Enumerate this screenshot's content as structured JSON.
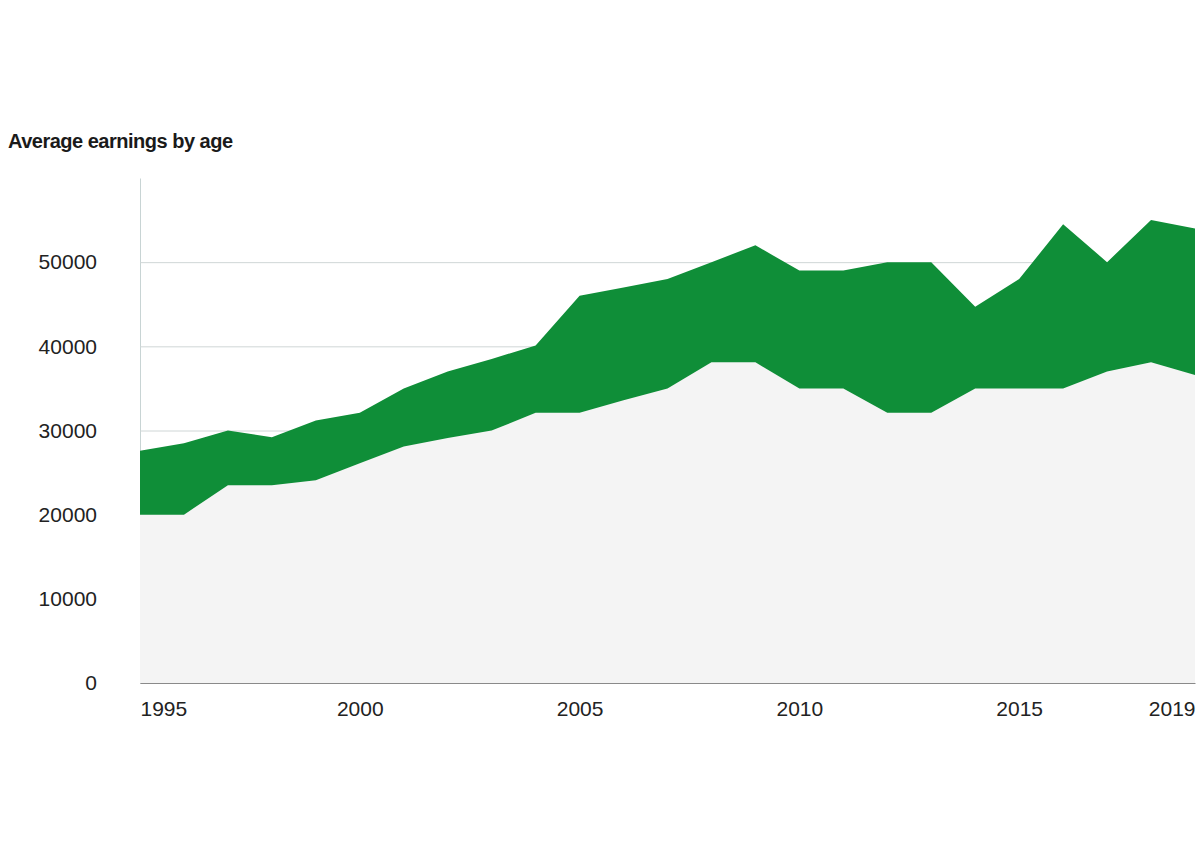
{
  "chart_data": {
    "type": "area",
    "title": "Average earnings by age",
    "x": [
      1995,
      1996,
      1997,
      1998,
      1999,
      2000,
      2001,
      2002,
      2003,
      2004,
      2005,
      2006,
      2007,
      2008,
      2009,
      2010,
      2011,
      2012,
      2013,
      2014,
      2015,
      2016,
      2017,
      2018,
      2019
    ],
    "series": [
      {
        "color": "#0f8e38",
        "values": [
          27600,
          28500,
          30000,
          29200,
          31200,
          32100,
          35000,
          37000,
          38500,
          40100,
          46000,
          47000,
          48000,
          50000,
          52000,
          49000,
          49000,
          50000,
          50000,
          44700,
          48000,
          54500,
          50000,
          55000,
          54000
        ]
      },
      {
        "color": "#f4f4f4",
        "values": [
          20000,
          20000,
          23500,
          23500,
          24100,
          26100,
          28100,
          29100,
          30000,
          32100,
          32100,
          33600,
          35000,
          38100,
          38100,
          35000,
          35000,
          32100,
          32100,
          35000,
          35000,
          35000,
          37000,
          38100,
          36600
        ]
      }
    ],
    "xlim": [
      1995,
      2019
    ],
    "ylim": [
      0,
      60000
    ],
    "xticks": [
      1995,
      2000,
      2005,
      2010,
      2015,
      2019
    ],
    "yticks": [
      0,
      10000,
      20000,
      30000,
      40000,
      50000
    ],
    "grid": true,
    "stacked": false
  }
}
